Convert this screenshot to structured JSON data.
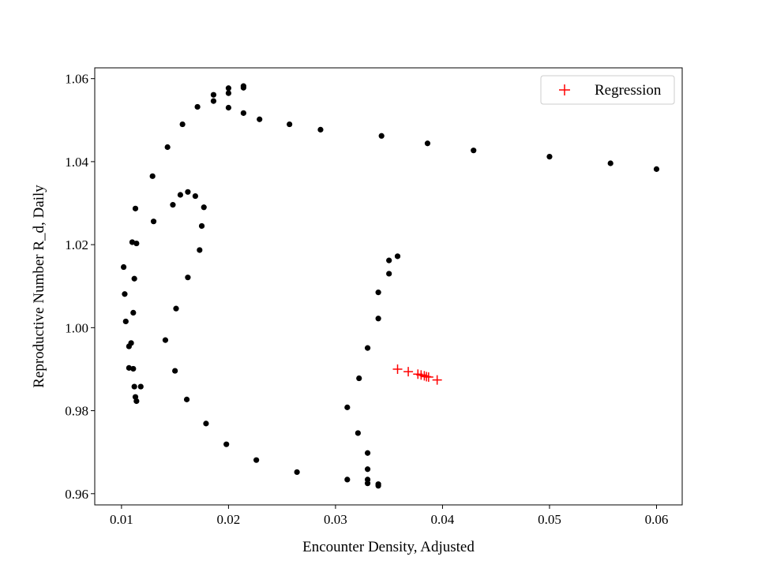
{
  "chart_data": {
    "type": "scatter",
    "xlabel": "Encounter Density, Adjusted",
    "ylabel": "Reproductive Number R_d, Daily",
    "xlim": [
      0.0075,
      0.0624
    ],
    "ylim": [
      0.9573,
      1.0626
    ],
    "xticks": [
      0.01,
      0.02,
      0.03,
      0.04,
      0.05,
      0.06
    ],
    "xtick_labels": [
      "0.01",
      "0.02",
      "0.03",
      "0.04",
      "0.05",
      "0.06"
    ],
    "yticks": [
      0.96,
      0.98,
      1.0,
      1.02,
      1.04,
      1.06
    ],
    "ytick_labels": [
      "0.96",
      "0.98",
      "1.00",
      "1.02",
      "1.04",
      "1.06"
    ],
    "grid": false,
    "legend_position": "upper right",
    "series": [
      {
        "marker": "dot",
        "color": "#000000",
        "points": [
          [
            0.06,
            1.0382
          ],
          [
            0.0557,
            1.0396
          ],
          [
            0.05,
            1.0412
          ],
          [
            0.0429,
            1.0427
          ],
          [
            0.0386,
            1.0444
          ],
          [
            0.0343,
            1.0462
          ],
          [
            0.0286,
            1.0477
          ],
          [
            0.0257,
            1.049
          ],
          [
            0.0229,
            1.0502
          ],
          [
            0.0214,
            1.0517
          ],
          [
            0.02,
            1.053
          ],
          [
            0.0186,
            1.0546
          ],
          [
            0.0171,
            1.0532
          ],
          [
            0.0157,
            1.049
          ],
          [
            0.0143,
            1.0435
          ],
          [
            0.0129,
            1.0365
          ],
          [
            0.0113,
            1.0287
          ],
          [
            0.011,
            1.0206
          ],
          [
            0.0102,
            1.0146
          ],
          [
            0.0103,
            1.0081
          ],
          [
            0.0104,
            1.0015
          ],
          [
            0.0107,
            0.9955
          ],
          [
            0.0107,
            0.9903
          ],
          [
            0.0112,
            0.9858
          ],
          [
            0.0113,
            0.9833
          ],
          [
            0.0114,
            0.9823
          ],
          [
            0.0118,
            0.9858
          ],
          [
            0.0111,
            0.9901
          ],
          [
            0.0109,
            0.9963
          ],
          [
            0.0111,
            1.0036
          ],
          [
            0.0112,
            1.0118
          ],
          [
            0.0114,
            1.0203
          ],
          [
            0.013,
            1.0256
          ],
          [
            0.0148,
            1.0296
          ],
          [
            0.0155,
            1.032
          ],
          [
            0.0162,
            1.0327
          ],
          [
            0.0169,
            1.0317
          ],
          [
            0.0177,
            1.029
          ],
          [
            0.0175,
            1.0245
          ],
          [
            0.0173,
            1.0187
          ],
          [
            0.0162,
            1.0121
          ],
          [
            0.0151,
            1.0046
          ],
          [
            0.0141,
            0.997
          ],
          [
            0.015,
            0.9896
          ],
          [
            0.0161,
            0.9827
          ],
          [
            0.0179,
            0.9769
          ],
          [
            0.0198,
            0.9719
          ],
          [
            0.0226,
            0.9681
          ],
          [
            0.0264,
            0.9652
          ],
          [
            0.0311,
            0.9634
          ],
          [
            0.033,
            0.9625
          ],
          [
            0.034,
            0.9619
          ],
          [
            0.034,
            0.9623
          ],
          [
            0.033,
            0.9634
          ],
          [
            0.033,
            0.9659
          ],
          [
            0.033,
            0.9698
          ],
          [
            0.0321,
            0.9746
          ],
          [
            0.0311,
            0.9808
          ],
          [
            0.0322,
            0.9878
          ],
          [
            0.033,
            0.9951
          ],
          [
            0.034,
            1.0022
          ],
          [
            0.034,
            1.0085
          ],
          [
            0.035,
            1.013
          ],
          [
            0.035,
            1.0162
          ],
          [
            0.0358,
            1.0172
          ],
          [
            0.02,
            1.0565
          ],
          [
            0.02,
            1.0577
          ],
          [
            0.0214,
            1.0578
          ],
          [
            0.0214,
            1.0582
          ],
          [
            0.0186,
            1.0561
          ]
        ]
      },
      {
        "name": "Regression",
        "marker": "plus",
        "color": "#ff0000",
        "points": [
          [
            0.0358,
            0.99
          ],
          [
            0.0368,
            0.9894
          ],
          [
            0.0377,
            0.9888
          ],
          [
            0.038,
            0.9886
          ],
          [
            0.0383,
            0.9884
          ],
          [
            0.0385,
            0.9882
          ],
          [
            0.0387,
            0.9881
          ],
          [
            0.0395,
            0.9874
          ]
        ]
      }
    ]
  }
}
